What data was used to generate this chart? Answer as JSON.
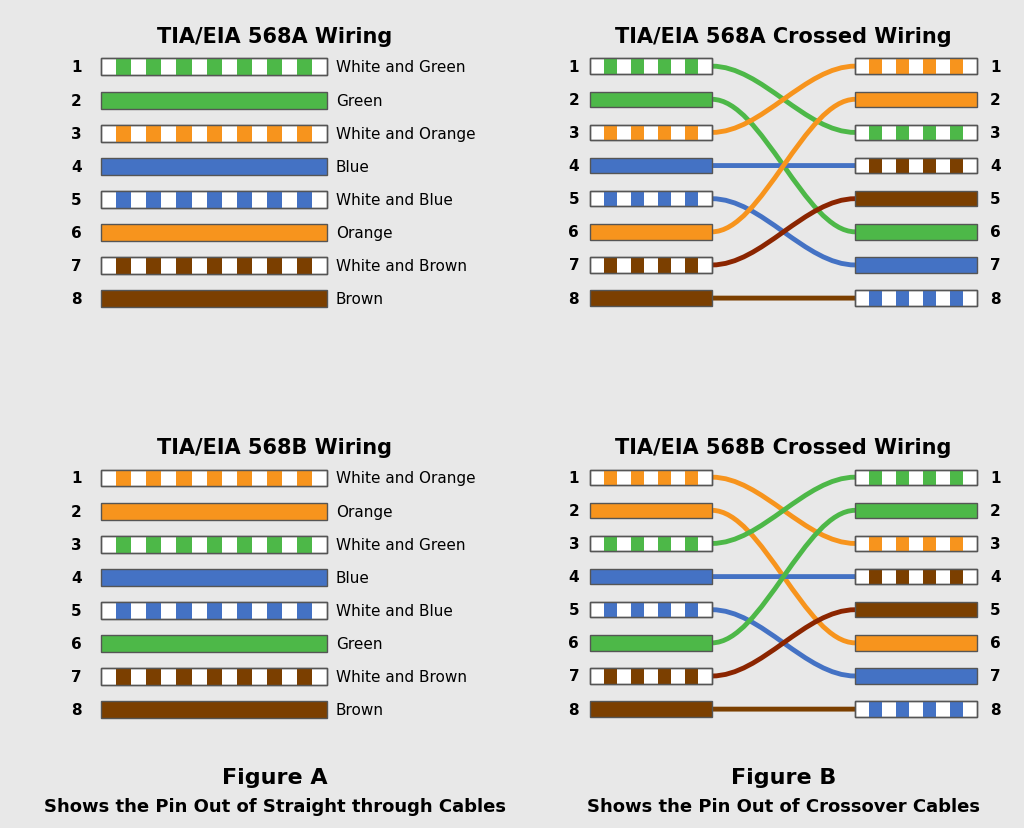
{
  "bg_color": "#e8e8e8",
  "title_fontsize": 15,
  "label_fontsize": 11,
  "pin_fontsize": 11,
  "fig_label_fontsize": 16,
  "caption_fontsize": 13,
  "colors": {
    "green": "#4db848",
    "orange": "#f7941d",
    "blue": "#4472c4",
    "brown": "#7b3f00",
    "white": "#ffffff",
    "dark_brown": "#8b2500"
  },
  "568A": {
    "title": "TIA/EIA 568A Wiring",
    "pins": [
      {
        "num": 1,
        "label": "White and Green",
        "type": "striped",
        "color": "#4db848"
      },
      {
        "num": 2,
        "label": "Green",
        "type": "solid",
        "color": "#4db848"
      },
      {
        "num": 3,
        "label": "White and Orange",
        "type": "striped",
        "color": "#f7941d"
      },
      {
        "num": 4,
        "label": "Blue",
        "type": "solid",
        "color": "#4472c4"
      },
      {
        "num": 5,
        "label": "White and Blue",
        "type": "striped",
        "color": "#4472c4"
      },
      {
        "num": 6,
        "label": "Orange",
        "type": "solid",
        "color": "#f7941d"
      },
      {
        "num": 7,
        "label": "White and Brown",
        "type": "striped",
        "color": "#7b3f00"
      },
      {
        "num": 8,
        "label": "Brown",
        "type": "solid",
        "color": "#7b3f00"
      }
    ]
  },
  "568B": {
    "title": "TIA/EIA 568B Wiring",
    "pins": [
      {
        "num": 1,
        "label": "White and Orange",
        "type": "striped",
        "color": "#f7941d"
      },
      {
        "num": 2,
        "label": "Orange",
        "type": "solid",
        "color": "#f7941d"
      },
      {
        "num": 3,
        "label": "White and Green",
        "type": "striped",
        "color": "#4db848"
      },
      {
        "num": 4,
        "label": "Blue",
        "type": "solid",
        "color": "#4472c4"
      },
      {
        "num": 5,
        "label": "White and Blue",
        "type": "striped",
        "color": "#4472c4"
      },
      {
        "num": 6,
        "label": "Green",
        "type": "solid",
        "color": "#4db848"
      },
      {
        "num": 7,
        "label": "White and Brown",
        "type": "striped",
        "color": "#7b3f00"
      },
      {
        "num": 8,
        "label": "Brown",
        "type": "solid",
        "color": "#7b3f00"
      }
    ]
  },
  "568A_cross": {
    "title": "TIA/EIA 568A Crossed Wiring",
    "left_pins": [
      {
        "color": "#4db848",
        "type": "striped"
      },
      {
        "color": "#4db848",
        "type": "solid"
      },
      {
        "color": "#f7941d",
        "type": "striped"
      },
      {
        "color": "#4472c4",
        "type": "solid"
      },
      {
        "color": "#4472c4",
        "type": "striped"
      },
      {
        "color": "#f7941d",
        "type": "solid"
      },
      {
        "color": "#7b3f00",
        "type": "striped"
      },
      {
        "color": "#7b3f00",
        "type": "solid"
      }
    ],
    "right_pins": [
      {
        "color": "#f7941d",
        "type": "striped"
      },
      {
        "color": "#f7941d",
        "type": "solid"
      },
      {
        "color": "#4db848",
        "type": "striped"
      },
      {
        "color": "#7b3f00",
        "type": "striped"
      },
      {
        "color": "#7b3f00",
        "type": "solid"
      },
      {
        "color": "#4db848",
        "type": "solid"
      },
      {
        "color": "#4472c4",
        "type": "solid"
      },
      {
        "color": "#4472c4",
        "type": "striped"
      }
    ],
    "connections": [
      [
        0,
        2,
        "#4db848"
      ],
      [
        1,
        5,
        "#4db848"
      ],
      [
        2,
        0,
        "#f7941d"
      ],
      [
        3,
        3,
        "#4472c4"
      ],
      [
        4,
        6,
        "#4472c4"
      ],
      [
        5,
        1,
        "#f7941d"
      ],
      [
        6,
        4,
        "#8b2500"
      ],
      [
        7,
        7,
        "#7b3f00"
      ]
    ]
  },
  "568B_cross": {
    "title": "TIA/EIA 568B Crossed Wiring",
    "left_pins": [
      {
        "color": "#f7941d",
        "type": "striped"
      },
      {
        "color": "#f7941d",
        "type": "solid"
      },
      {
        "color": "#4db848",
        "type": "striped"
      },
      {
        "color": "#4472c4",
        "type": "solid"
      },
      {
        "color": "#4472c4",
        "type": "striped"
      },
      {
        "color": "#4db848",
        "type": "solid"
      },
      {
        "color": "#7b3f00",
        "type": "striped"
      },
      {
        "color": "#7b3f00",
        "type": "solid"
      }
    ],
    "right_pins": [
      {
        "color": "#4db848",
        "type": "striped"
      },
      {
        "color": "#4db848",
        "type": "solid"
      },
      {
        "color": "#f7941d",
        "type": "striped"
      },
      {
        "color": "#7b3f00",
        "type": "striped"
      },
      {
        "color": "#7b3f00",
        "type": "solid"
      },
      {
        "color": "#f7941d",
        "type": "solid"
      },
      {
        "color": "#4472c4",
        "type": "solid"
      },
      {
        "color": "#4472c4",
        "type": "striped"
      }
    ],
    "connections": [
      [
        0,
        2,
        "#f7941d"
      ],
      [
        1,
        5,
        "#f7941d"
      ],
      [
        2,
        0,
        "#4db848"
      ],
      [
        3,
        3,
        "#4472c4"
      ],
      [
        4,
        6,
        "#4472c4"
      ],
      [
        5,
        1,
        "#4db848"
      ],
      [
        6,
        4,
        "#8b2500"
      ],
      [
        7,
        7,
        "#7b3f00"
      ]
    ]
  },
  "figure_a_label": "Figure A",
  "figure_b_label": "Figure B",
  "caption_a": "Shows the Pin Out of Straight through Cables",
  "caption_b": "Shows the Pin Out of Crossover Cables"
}
